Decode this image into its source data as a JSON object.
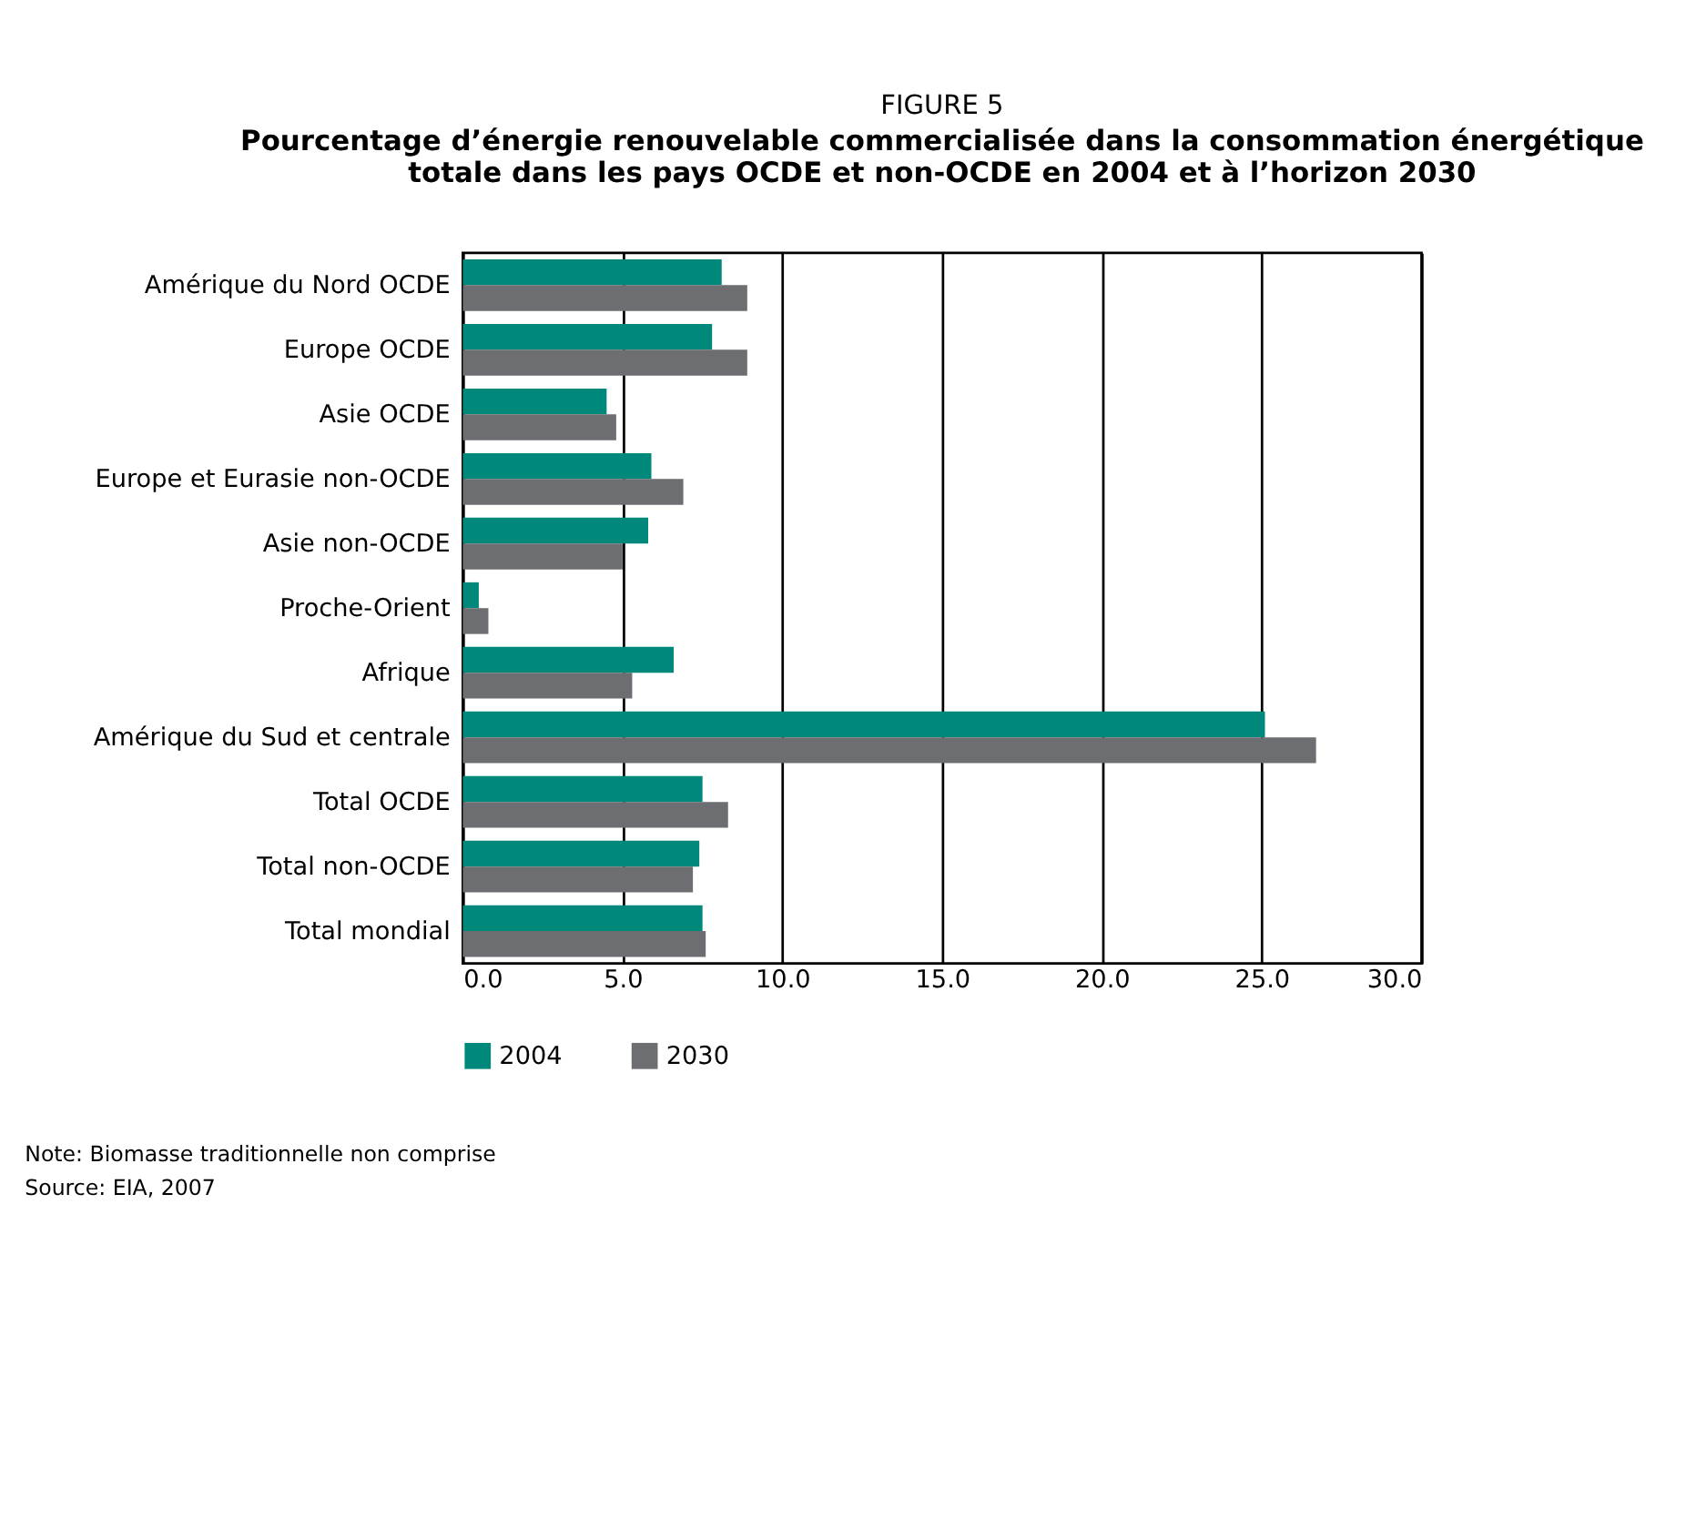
{
  "chart_data": {
    "type": "bar",
    "orientation": "horizontal",
    "title": "FIGURE 5",
    "subtitle": "Pourcentage d’énergie renouvelable commercialisée dans la consommation énergétique\ntotale dans les pays OCDE et non-OCDE en 2004 et à l’horizon 2030",
    "categories": [
      "Amérique du Nord OCDE",
      "Europe OCDE",
      "Asie OCDE",
      "Europe et Eurasie non-OCDE",
      "Asie non-OCDE",
      "Proche-Orient",
      "Afrique",
      "Amérique du Sud et centrale",
      "Total OCDE",
      "Total non-OCDE",
      "Total mondial"
    ],
    "series": [
      {
        "name": "2004",
        "color": "#00897b",
        "values": [
          8.1,
          7.8,
          4.5,
          5.9,
          5.8,
          0.5,
          6.6,
          25.1,
          7.5,
          7.4,
          7.5
        ]
      },
      {
        "name": "2030",
        "color": "#6d6e71",
        "values": [
          8.9,
          8.9,
          4.8,
          6.9,
          5.0,
          0.8,
          5.3,
          26.7,
          8.3,
          7.2,
          7.6
        ]
      }
    ],
    "xlim": [
      0,
      30
    ],
    "xticks": [
      {
        "value": 0,
        "label": "0.0"
      },
      {
        "value": 5,
        "label": "5.0"
      },
      {
        "value": 10,
        "label": "10.0"
      },
      {
        "value": 15,
        "label": "15.0"
      },
      {
        "value": 20,
        "label": "20.0"
      },
      {
        "value": 25,
        "label": "25.0"
      },
      {
        "value": 30,
        "label": "30.0"
      }
    ],
    "grid": "x",
    "legend": "bottom",
    "annotations": [
      "Note: Biomasse traditionnelle non comprise",
      "Source: EIA, 2007"
    ]
  }
}
